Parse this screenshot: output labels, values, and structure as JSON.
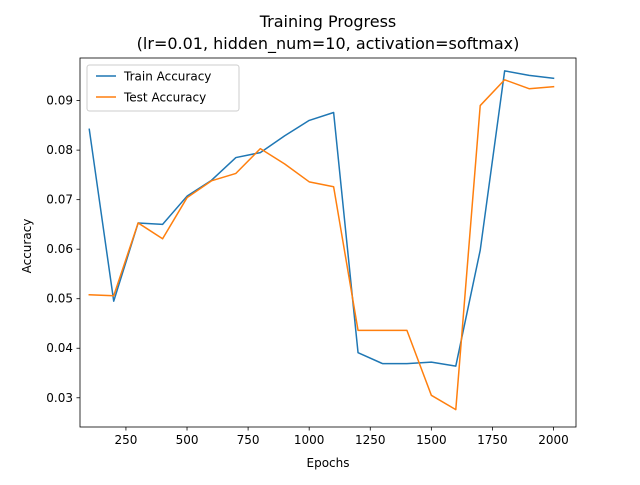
{
  "chart_data": {
    "type": "line",
    "title": "Training Progress",
    "subtitle": "(lr=0.01, hidden_num=10, activation=softmax)",
    "xlabel": "Epochs",
    "ylabel": "Accuracy",
    "xlim": [
      62,
      2092
    ],
    "ylim": [
      0.0241,
      0.0986
    ],
    "xticks": [
      250,
      500,
      750,
      1000,
      1250,
      1500,
      1750,
      2000
    ],
    "xtick_labels": [
      "250",
      "500",
      "750",
      "1000",
      "1250",
      "1500",
      "1750",
      "2000"
    ],
    "yticks": [
      0.03,
      0.04,
      0.05,
      0.06,
      0.07,
      0.08,
      0.09
    ],
    "ytick_labels": [
      "0.03",
      "0.04",
      "0.05",
      "0.06",
      "0.07",
      "0.08",
      "0.09"
    ],
    "grid": false,
    "legend_position": "upper left",
    "x": [
      100,
      200,
      300,
      400,
      500,
      600,
      700,
      800,
      900,
      1000,
      1100,
      1200,
      1300,
      1400,
      1500,
      1600,
      1700,
      1800,
      1900,
      2000
    ],
    "series": [
      {
        "name": "Train Accuracy",
        "color": "#1f77b4",
        "values": [
          0.0842,
          0.0495,
          0.0653,
          0.065,
          0.0707,
          0.0739,
          0.0785,
          0.0795,
          0.0829,
          0.086,
          0.0876,
          0.0391,
          0.0369,
          0.0369,
          0.0372,
          0.0364,
          0.0598,
          0.096,
          0.0951,
          0.0945
        ]
      },
      {
        "name": "Test Accuracy",
        "color": "#ff7f0e",
        "values": [
          0.0508,
          0.0506,
          0.0653,
          0.0621,
          0.0704,
          0.0738,
          0.0753,
          0.0803,
          0.0772,
          0.0736,
          0.0726,
          0.0436,
          0.0436,
          0.0436,
          0.0305,
          0.0276,
          0.089,
          0.0942,
          0.0924,
          0.0928
        ]
      }
    ]
  }
}
